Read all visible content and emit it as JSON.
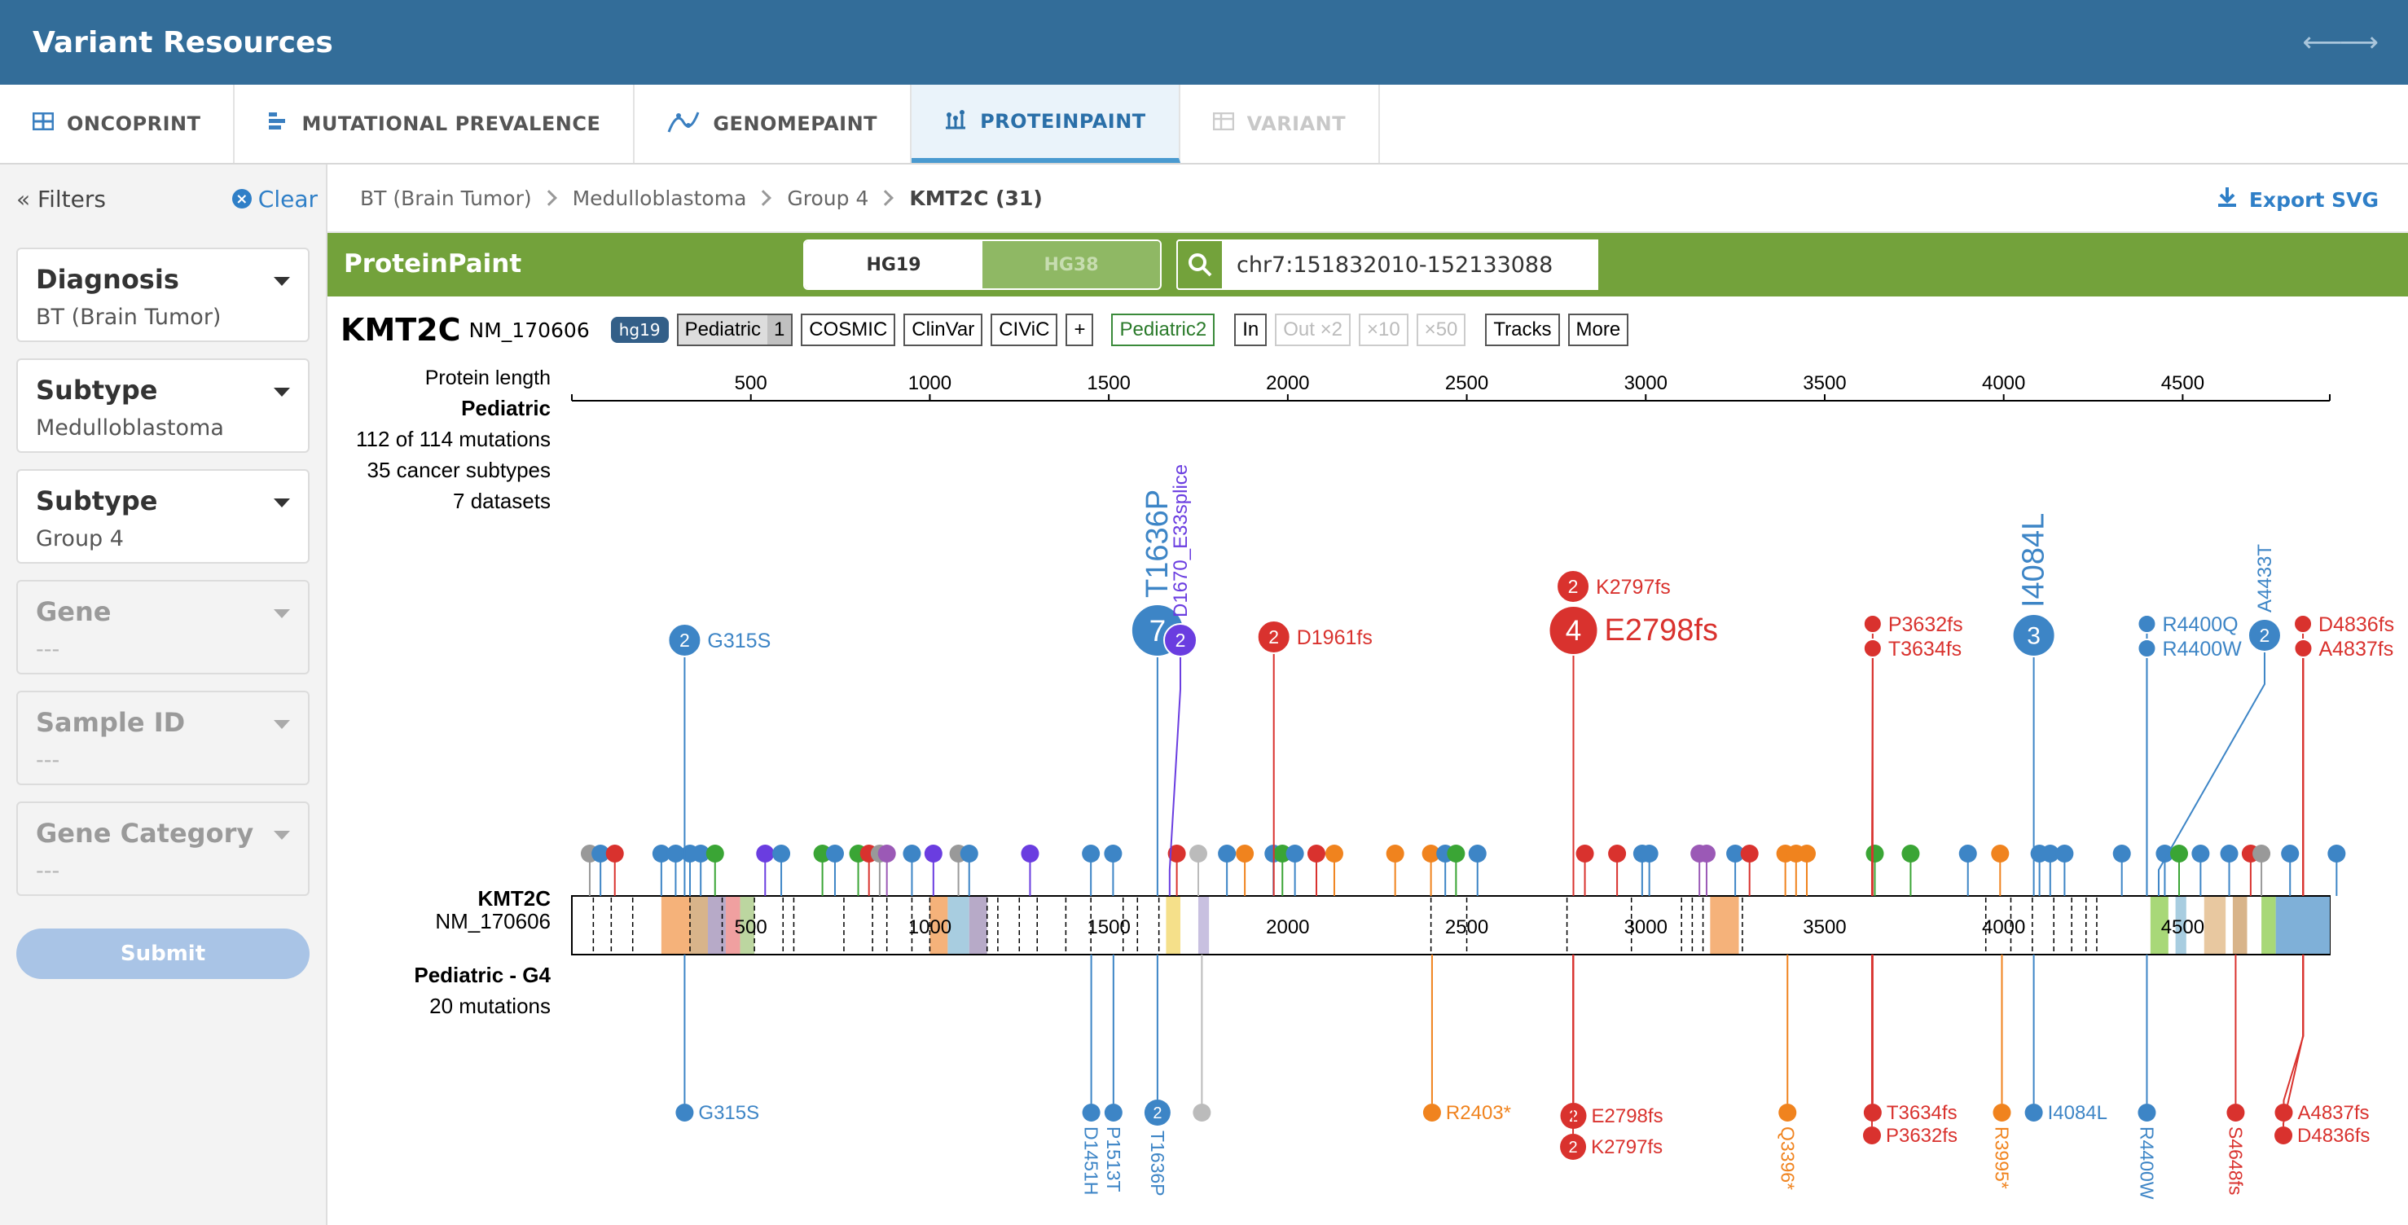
{
  "header": {
    "title": "Variant Resources",
    "expand_icon": "expand-horizontal-icon"
  },
  "tabs": [
    {
      "label": "ONCOPRINT",
      "icon": "grid-icon"
    },
    {
      "label": "MUTATIONAL PREVALENCE",
      "icon": "bar-list-icon"
    },
    {
      "label": "GENOMEPAINT",
      "icon": "genome-icon"
    },
    {
      "label": "PROTEINPAINT",
      "icon": "lollipop-icon",
      "active": true
    },
    {
      "label": "VARIANT",
      "icon": "table-icon",
      "disabled": true
    }
  ],
  "sidebar": {
    "title": "Filters",
    "clear_label": "Clear",
    "filters": [
      {
        "label": "Diagnosis",
        "value": "BT (Brain Tumor)"
      },
      {
        "label": "Subtype",
        "value": "Medulloblastoma"
      },
      {
        "label": "Subtype",
        "value": "Group 4"
      },
      {
        "label": "Gene",
        "value": "---"
      },
      {
        "label": "Sample ID",
        "value": "---"
      },
      {
        "label": "Gene Category",
        "value": "---"
      }
    ],
    "submit_label": "Submit"
  },
  "breadcrumb": [
    "BT (Brain Tumor)",
    "Medulloblastoma",
    "Group 4",
    "KMT2C (31)"
  ],
  "export_label": "Export SVG",
  "pp": {
    "title": "ProteinPaint",
    "genome_on": "HG19",
    "genome_off": "HG38",
    "search_value": "chr7:151832010-152133088"
  },
  "gene": {
    "name": "KMT2C",
    "isoform": "NM_170606",
    "badge": "hg19",
    "track_ped": "Pediatric",
    "track_ped_count": "1",
    "track_cosmic": "COSMIC",
    "track_clinvar": "ClinVar",
    "track_civic": "CIViC",
    "track_plus": "+",
    "track_ped2": "Pediatric2",
    "zoom_in": "In",
    "zoom_out": "Out ×2",
    "zoom_10": "×10",
    "zoom_50": "×50",
    "tracks_btn": "Tracks",
    "more_btn": "More"
  },
  "colors": {
    "missense": "#3d85c6",
    "frameshift": "#d9322e",
    "nonsense": "#f0831e",
    "splice": "#6a3de0",
    "silent": "#3aa535",
    "other": "#999999"
  },
  "plot": {
    "axis_title": "Protein length",
    "axis_ticks": [
      500,
      1000,
      1500,
      2000,
      2500,
      3000,
      3500,
      4000,
      4500
    ],
    "domain_ticks": [
      "500",
      "1000",
      "1500",
      "2000",
      "2500",
      "3000",
      "3500",
      "4000",
      "4500"
    ],
    "top_track": {
      "name": "Pediatric",
      "line1": "112 of 114 mutations",
      "line2": "35 cancer subtypes",
      "line3": "7 datasets"
    },
    "gene_label": "KMT2C",
    "gene_isoform": "NM_170606",
    "bottom_track": {
      "name": "Pediatric - G4",
      "line1": "20 mutations"
    },
    "top_labels": [
      {
        "aa": 315,
        "count": "2",
        "label": "G315S",
        "color": "#3d85c6"
      },
      {
        "aa": 1636,
        "count": "7",
        "label": "T1636P",
        "color": "#3d85c6"
      },
      {
        "aa": 1670,
        "count": "2",
        "label": "D1670_E33splice",
        "color": "#6a3de0"
      },
      {
        "aa": 1961,
        "count": "2",
        "label": "D1961fs",
        "color": "#d9322e"
      },
      {
        "aa": 2797,
        "count": "2",
        "label": "K2797fs",
        "color": "#d9322e"
      },
      {
        "aa": 2798,
        "count": "4",
        "label": "E2798fs",
        "color": "#d9322e"
      },
      {
        "aa": 3632,
        "count": "",
        "label": "P3632fs",
        "color": "#d9322e"
      },
      {
        "aa": 3634,
        "count": "",
        "label": "T3634fs",
        "color": "#d9322e"
      },
      {
        "aa": 4084,
        "count": "3",
        "label": "I4084L",
        "color": "#3d85c6"
      },
      {
        "aa": 4400,
        "count": "",
        "label": "R4400Q",
        "color": "#3d85c6"
      },
      {
        "aa": 4400,
        "count": "",
        "label": "R4400W",
        "color": "#3d85c6"
      },
      {
        "aa": 4433,
        "count": "2",
        "label": "A4433T",
        "color": "#3d85c6"
      },
      {
        "aa": 4836,
        "count": "",
        "label": "D4836fs",
        "color": "#d9322e"
      },
      {
        "aa": 4837,
        "count": "",
        "label": "A4837fs",
        "color": "#d9322e"
      }
    ],
    "bottom_labels": [
      {
        "aa": 315,
        "count": "",
        "label": "G315S",
        "color": "#3d85c6"
      },
      {
        "aa": 1451,
        "count": "",
        "label": "D1451H",
        "color": "#3d85c6"
      },
      {
        "aa": 1513,
        "count": "",
        "label": "P1513T",
        "color": "#3d85c6"
      },
      {
        "aa": 1636,
        "count": "2",
        "label": "T1636P",
        "color": "#3d85c6"
      },
      {
        "aa": 1760,
        "count": "",
        "label": "",
        "color": "#bbbbbb"
      },
      {
        "aa": 2403,
        "count": "",
        "label": "R2403*",
        "color": "#f0831e"
      },
      {
        "aa": 2798,
        "count": "2",
        "label": "E2798fs",
        "color": "#d9322e"
      },
      {
        "aa": 2797,
        "count": "2",
        "label": "K2797fs",
        "color": "#d9322e"
      },
      {
        "aa": 3396,
        "count": "",
        "label": "Q3396*",
        "color": "#f0831e"
      },
      {
        "aa": 3634,
        "count": "",
        "label": "T3634fs",
        "color": "#d9322e"
      },
      {
        "aa": 3632,
        "count": "",
        "label": "P3632fs",
        "color": "#d9322e"
      },
      {
        "aa": 3995,
        "count": "",
        "label": "R3995*",
        "color": "#f0831e"
      },
      {
        "aa": 4084,
        "count": "",
        "label": "I4084L",
        "color": "#3d85c6"
      },
      {
        "aa": 4400,
        "count": "",
        "label": "R4400W",
        "color": "#3d85c6"
      },
      {
        "aa": 4648,
        "count": "",
        "label": "S4648fs",
        "color": "#d9322e"
      },
      {
        "aa": 4837,
        "count": "",
        "label": "A4837fs",
        "color": "#d9322e"
      },
      {
        "aa": 4836,
        "count": "",
        "label": "D4836fs",
        "color": "#d9322e"
      }
    ],
    "small_dots": [
      {
        "aa": 50,
        "color": "#999999"
      },
      {
        "aa": 80,
        "color": "#3d85c6"
      },
      {
        "aa": 120,
        "color": "#d9322e"
      },
      {
        "aa": 250,
        "color": "#3d85c6"
      },
      {
        "aa": 290,
        "color": "#3d85c6"
      },
      {
        "aa": 330,
        "color": "#3d85c6"
      },
      {
        "aa": 360,
        "color": "#3d85c6"
      },
      {
        "aa": 400,
        "color": "#3aa535"
      },
      {
        "aa": 540,
        "color": "#6a3de0"
      },
      {
        "aa": 585,
        "color": "#3d85c6"
      },
      {
        "aa": 700,
        "color": "#3aa535"
      },
      {
        "aa": 735,
        "color": "#3d85c6"
      },
      {
        "aa": 800,
        "color": "#3aa535"
      },
      {
        "aa": 830,
        "color": "#d9322e"
      },
      {
        "aa": 860,
        "color": "#999999"
      },
      {
        "aa": 880,
        "color": "#9b59b6"
      },
      {
        "aa": 950,
        "color": "#3d85c6"
      },
      {
        "aa": 1010,
        "color": "#6a3de0"
      },
      {
        "aa": 1080,
        "color": "#999999"
      },
      {
        "aa": 1110,
        "color": "#3d85c6"
      },
      {
        "aa": 1280,
        "color": "#6a3de0"
      },
      {
        "aa": 1450,
        "color": "#3d85c6"
      },
      {
        "aa": 1512,
        "color": "#3d85c6"
      },
      {
        "aa": 1690,
        "color": "#d9322e"
      },
      {
        "aa": 1750,
        "color": "#bbbbbb"
      },
      {
        "aa": 1830,
        "color": "#3d85c6"
      },
      {
        "aa": 1880,
        "color": "#f0831e"
      },
      {
        "aa": 1960,
        "color": "#3d85c6"
      },
      {
        "aa": 1985,
        "color": "#3aa535"
      },
      {
        "aa": 2020,
        "color": "#3d85c6"
      },
      {
        "aa": 2080,
        "color": "#d9322e"
      },
      {
        "aa": 2130,
        "color": "#f0831e"
      },
      {
        "aa": 2300,
        "color": "#f0831e"
      },
      {
        "aa": 2400,
        "color": "#f0831e"
      },
      {
        "aa": 2440,
        "color": "#3d85c6"
      },
      {
        "aa": 2470,
        "color": "#3aa535"
      },
      {
        "aa": 2530,
        "color": "#3d85c6"
      },
      {
        "aa": 2830,
        "color": "#d9322e"
      },
      {
        "aa": 2920,
        "color": "#d9322e"
      },
      {
        "aa": 2990,
        "color": "#3d85c6"
      },
      {
        "aa": 3010,
        "color": "#3d85c6"
      },
      {
        "aa": 3150,
        "color": "#9b59b6"
      },
      {
        "aa": 3170,
        "color": "#9b59b6"
      },
      {
        "aa": 3250,
        "color": "#3d85c6"
      },
      {
        "aa": 3290,
        "color": "#d9322e"
      },
      {
        "aa": 3390,
        "color": "#f0831e"
      },
      {
        "aa": 3420,
        "color": "#f0831e"
      },
      {
        "aa": 3450,
        "color": "#f0831e"
      },
      {
        "aa": 3640,
        "color": "#3aa535"
      },
      {
        "aa": 3740,
        "color": "#3aa535"
      },
      {
        "aa": 3900,
        "color": "#3d85c6"
      },
      {
        "aa": 3990,
        "color": "#f0831e"
      },
      {
        "aa": 4100,
        "color": "#3d85c6"
      },
      {
        "aa": 4130,
        "color": "#3d85c6"
      },
      {
        "aa": 4170,
        "color": "#3d85c6"
      },
      {
        "aa": 4330,
        "color": "#3d85c6"
      },
      {
        "aa": 4450,
        "color": "#3d85c6"
      },
      {
        "aa": 4490,
        "color": "#3aa535"
      },
      {
        "aa": 4550,
        "color": "#3d85c6"
      },
      {
        "aa": 4630,
        "color": "#3d85c6"
      },
      {
        "aa": 4690,
        "color": "#d9322e"
      },
      {
        "aa": 4720,
        "color": "#999999"
      },
      {
        "aa": 4800,
        "color": "#3d85c6"
      },
      {
        "aa": 4930,
        "color": "#3d85c6"
      }
    ],
    "domains": [
      {
        "start": 250,
        "end": 330,
        "color": "#f5b27a"
      },
      {
        "start": 330,
        "end": 380,
        "color": "#d8b48a"
      },
      {
        "start": 380,
        "end": 430,
        "color": "#b7aac8"
      },
      {
        "start": 430,
        "end": 470,
        "color": "#f0a0a0"
      },
      {
        "start": 470,
        "end": 510,
        "color": "#bcd6a0"
      },
      {
        "start": 1000,
        "end": 1050,
        "color": "#f5b27a"
      },
      {
        "start": 1050,
        "end": 1110,
        "color": "#a8cde0"
      },
      {
        "start": 1110,
        "end": 1160,
        "color": "#b7aac8"
      },
      {
        "start": 1660,
        "end": 1700,
        "color": "#f5e08a"
      },
      {
        "start": 1750,
        "end": 1780,
        "color": "#c8c0e0"
      },
      {
        "start": 3180,
        "end": 3260,
        "color": "#f5b27a"
      },
      {
        "start": 4410,
        "end": 4460,
        "color": "#a8d878"
      },
      {
        "start": 4480,
        "end": 4510,
        "color": "#a8cde0"
      },
      {
        "start": 4560,
        "end": 4620,
        "color": "#e8c8a0"
      },
      {
        "start": 4640,
        "end": 4680,
        "color": "#d8b48a"
      },
      {
        "start": 4720,
        "end": 4760,
        "color": "#a8d878"
      },
      {
        "start": 4760,
        "end": 4911,
        "color": "#7fb0d8"
      }
    ],
    "protein_length": 4911
  }
}
